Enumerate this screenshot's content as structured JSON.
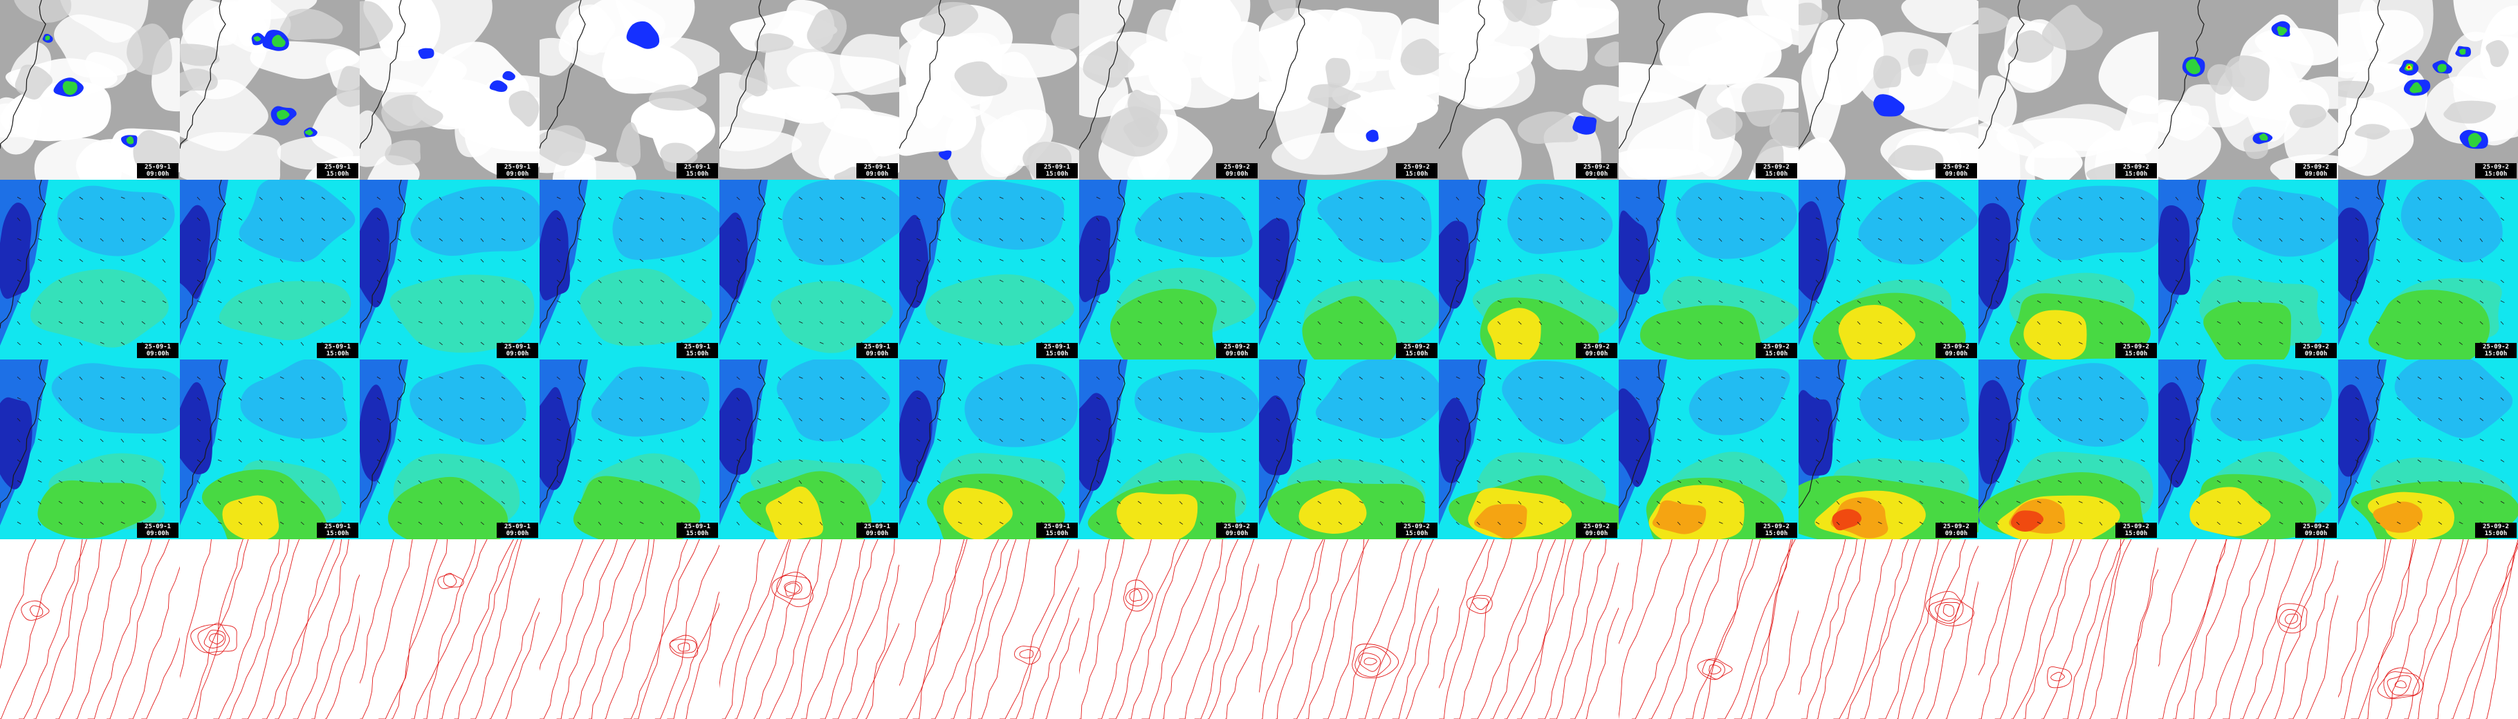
{
  "columns": [
    {
      "date": "25-09-1",
      "time": "09:00h"
    },
    {
      "date": "25-09-1",
      "time": "15:00h"
    },
    {
      "date": "25-09-1",
      "time": "09:00h"
    },
    {
      "date": "25-09-1",
      "time": "15:00h"
    },
    {
      "date": "25-09-1",
      "time": "09:00h"
    },
    {
      "date": "25-09-1",
      "time": "15:00h"
    },
    {
      "date": "25-09-2",
      "time": "09:00h"
    },
    {
      "date": "25-09-2",
      "time": "15:00h"
    },
    {
      "date": "25-09-2",
      "time": "09:00h"
    },
    {
      "date": "25-09-2",
      "time": "15:00h"
    },
    {
      "date": "25-09-2",
      "time": "09:00h"
    },
    {
      "date": "25-09-2",
      "time": "15:00h"
    },
    {
      "date": "25-09-2",
      "time": "09:00h"
    },
    {
      "date": "25-09-2",
      "time": "15:00h"
    }
  ],
  "rows": [
    {
      "id": "clouds-precip",
      "stamped": true
    },
    {
      "id": "wind-field-a",
      "stamped": true
    },
    {
      "id": "wind-field-b",
      "stamped": true
    },
    {
      "id": "isobars",
      "stamped": false
    }
  ],
  "colors": {
    "cloud_gray": "#a9a9a9",
    "precip_blue": "#1530ff",
    "precip_green": "#2fd23c",
    "precip_yellow": "#f5e90a",
    "precip_red": "#ff1414",
    "wind_darkblue": "#1a2ab8",
    "wind_blue": "#1d70e6",
    "wind_lightblue": "#29a9f3",
    "wind_cyan": "#12e6ef",
    "wind_teal": "#3cdfb0",
    "wind_green": "#48d943",
    "wind_yellow": "#f2e616",
    "wind_orange": "#f5a412",
    "wind_red": "#f04a10",
    "isobar_red": "#e31b1b",
    "coast": "#1a1a1a",
    "stamp_bg": "#000000",
    "stamp_fg": "#ffffff"
  },
  "icons": [
    "wind-arrow-icon",
    "coastline-icon"
  ]
}
